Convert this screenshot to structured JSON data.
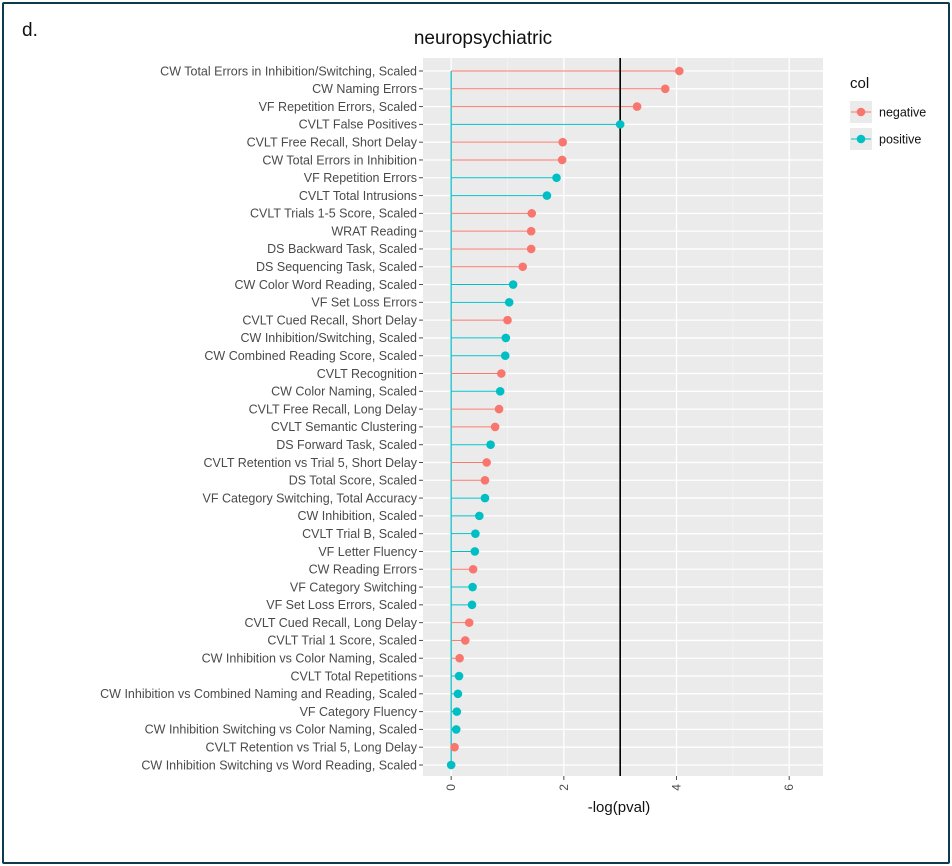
{
  "panel_label": "d.",
  "chart_data": {
    "type": "lollipop",
    "title": "neuropsychiatric",
    "xlabel": "-log(pval)",
    "ylabel": "",
    "xlim": [
      -0.5,
      6.6
    ],
    "x_ticks": [
      0,
      2,
      4,
      6
    ],
    "reference_line": 3,
    "grid": true,
    "legend": {
      "title": "col",
      "placement": "right",
      "entries": [
        {
          "name": "negative",
          "color": "#F8766D"
        },
        {
          "name": "positive",
          "color": "#00BFC4"
        }
      ]
    },
    "categories": [
      "CW Total Errors in Inhibition/Switching, Scaled",
      "CW Naming Errors",
      "VF Repetition Errors, Scaled",
      "CVLT False Positives",
      "CVLT Free Recall, Short Delay",
      "CW Total Errors in Inhibition",
      "VF Repetition Errors",
      "CVLT Total Intrusions",
      "CVLT Trials 1-5 Score, Scaled",
      "WRAT Reading",
      "DS Backward Task, Scaled",
      "DS Sequencing Task, Scaled",
      "CW Color Word Reading, Scaled",
      "VF Set Loss Errors",
      "CVLT Cued Recall, Short Delay",
      "CW Inhibition/Switching, Scaled",
      "CW Combined Reading Score, Scaled",
      "CVLT Recognition",
      "CW Color Naming, Scaled",
      "CVLT Free Recall, Long Delay",
      "CVLT Semantic Clustering",
      "DS Forward Task, Scaled",
      "CVLT Retention vs Trial 5, Short Delay",
      "DS Total Score, Scaled",
      "VF Category Switching, Total Accuracy",
      "CW Inhibition, Scaled",
      "CVLT Trial B, Scaled",
      "VF Letter Fluency",
      "CW Reading Errors",
      "VF Category Switching",
      "VF Set Loss Errors, Scaled",
      "CVLT Cued Recall, Long Delay",
      "CVLT Trial 1 Score, Scaled",
      "CW Inhibition vs Color Naming, Scaled",
      "CVLT Total Repetitions",
      "CW Inhibition vs Combined Naming and Reading, Scaled",
      "VF Category Fluency",
      "CW Inhibition Switching vs Color Naming, Scaled",
      "CVLT Retention vs Trial 5, Long Delay",
      "CW Inhibition Switching vs Word Reading, Scaled"
    ],
    "values": [
      4.05,
      3.8,
      3.3,
      3.0,
      1.98,
      1.97,
      1.87,
      1.7,
      1.43,
      1.42,
      1.42,
      1.27,
      1.1,
      1.03,
      1.0,
      0.97,
      0.96,
      0.89,
      0.87,
      0.85,
      0.78,
      0.7,
      0.63,
      0.6,
      0.6,
      0.5,
      0.43,
      0.42,
      0.39,
      0.38,
      0.37,
      0.32,
      0.25,
      0.15,
      0.14,
      0.12,
      0.1,
      0.09,
      0.06,
      0.0
    ],
    "groups": [
      "negative",
      "negative",
      "negative",
      "positive",
      "negative",
      "negative",
      "positive",
      "positive",
      "negative",
      "negative",
      "negative",
      "negative",
      "positive",
      "positive",
      "negative",
      "positive",
      "positive",
      "negative",
      "positive",
      "negative",
      "negative",
      "positive",
      "negative",
      "negative",
      "positive",
      "positive",
      "positive",
      "positive",
      "negative",
      "positive",
      "positive",
      "negative",
      "negative",
      "negative",
      "positive",
      "positive",
      "positive",
      "positive",
      "negative",
      "positive"
    ]
  }
}
